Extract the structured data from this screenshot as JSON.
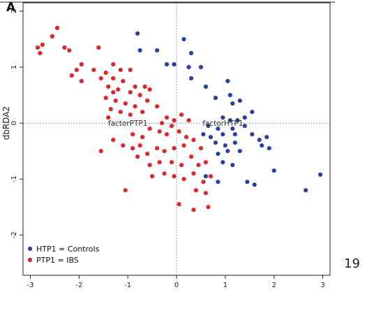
{
  "panel_label": "A",
  "page_number": "19",
  "chart_data": {
    "type": "scatter",
    "title": "",
    "xlabel": "",
    "ylabel": "dbRDA2",
    "xlim": [
      -3.15,
      3.15
    ],
    "ylim": [
      -2.72,
      2.15
    ],
    "xticks": [
      -3,
      -2,
      -1,
      0,
      1,
      2,
      3
    ],
    "yticks": [
      -2,
      -1,
      0,
      1,
      2
    ],
    "grid": false,
    "zero_lines": true,
    "legend_position": "bottom-left",
    "annotations": [
      {
        "text": "factorPTP1",
        "x": -1.0,
        "y": 0.0
      },
      {
        "text": "factorHTP1",
        "x": 0.95,
        "y": 0.0
      }
    ],
    "series": [
      {
        "name": "HTP1 = Controls",
        "color": "#2b3fa0",
        "points": [
          [
            -0.8,
            1.6
          ],
          [
            -0.75,
            1.3
          ],
          [
            -0.4,
            1.3
          ],
          [
            0.15,
            1.5
          ],
          [
            0.3,
            1.25
          ],
          [
            -0.2,
            1.05
          ],
          [
            -0.05,
            1.05
          ],
          [
            0.25,
            1.0
          ],
          [
            0.5,
            1.0
          ],
          [
            0.3,
            0.8
          ],
          [
            0.6,
            0.65
          ],
          [
            1.05,
            0.75
          ],
          [
            0.8,
            0.45
          ],
          [
            1.1,
            0.5
          ],
          [
            1.15,
            0.35
          ],
          [
            1.3,
            0.4
          ],
          [
            1.4,
            0.1
          ],
          [
            1.55,
            0.2
          ],
          [
            0.95,
            0.1
          ],
          [
            1.1,
            0.05
          ],
          [
            1.25,
            0.05
          ],
          [
            0.65,
            -0.05
          ],
          [
            0.85,
            -0.1
          ],
          [
            1.15,
            -0.1
          ],
          [
            1.4,
            -0.05
          ],
          [
            0.55,
            -0.2
          ],
          [
            0.7,
            -0.25
          ],
          [
            0.95,
            -0.2
          ],
          [
            1.2,
            -0.2
          ],
          [
            1.55,
            -0.2
          ],
          [
            1.85,
            -0.25
          ],
          [
            0.8,
            -0.35
          ],
          [
            1.0,
            -0.4
          ],
          [
            1.2,
            -0.35
          ],
          [
            0.85,
            -0.55
          ],
          [
            1.05,
            -0.5
          ],
          [
            1.3,
            -0.5
          ],
          [
            1.75,
            -0.4
          ],
          [
            1.9,
            -0.45
          ],
          [
            0.95,
            -0.7
          ],
          [
            1.15,
            -0.75
          ],
          [
            2.0,
            -0.85
          ],
          [
            0.85,
            -1.05
          ],
          [
            1.45,
            -1.05
          ],
          [
            1.6,
            -1.1
          ],
          [
            2.65,
            -1.2
          ],
          [
            2.95,
            -0.92
          ],
          [
            0.6,
            -0.95
          ],
          [
            1.7,
            -0.3
          ]
        ]
      },
      {
        "name": "PTP1 = IBS",
        "color": "#e0262b",
        "points": [
          [
            -2.45,
            1.7
          ],
          [
            -2.55,
            1.55
          ],
          [
            -2.75,
            1.4
          ],
          [
            -2.85,
            1.35
          ],
          [
            -2.8,
            1.25
          ],
          [
            -2.3,
            1.35
          ],
          [
            -2.2,
            1.3
          ],
          [
            -1.6,
            1.35
          ],
          [
            -1.95,
            1.05
          ],
          [
            -2.05,
            0.95
          ],
          [
            -1.7,
            0.95
          ],
          [
            -1.55,
            0.8
          ],
          [
            -2.15,
            0.85
          ],
          [
            -1.95,
            0.75
          ],
          [
            -1.3,
            1.05
          ],
          [
            -1.15,
            0.95
          ],
          [
            -0.95,
            0.95
          ],
          [
            -1.45,
            0.9
          ],
          [
            -1.3,
            0.8
          ],
          [
            -1.1,
            0.75
          ],
          [
            -0.85,
            0.65
          ],
          [
            -0.65,
            0.65
          ],
          [
            -1.4,
            0.65
          ],
          [
            -1.2,
            0.6
          ],
          [
            -0.95,
            0.55
          ],
          [
            -0.75,
            0.5
          ],
          [
            -0.55,
            0.6
          ],
          [
            -1.45,
            0.45
          ],
          [
            -1.25,
            0.4
          ],
          [
            -1.05,
            0.35
          ],
          [
            -0.85,
            0.3
          ],
          [
            -0.6,
            0.4
          ],
          [
            -1.35,
            0.25
          ],
          [
            -1.15,
            0.2
          ],
          [
            -0.95,
            0.15
          ],
          [
            -0.7,
            0.2
          ],
          [
            -1.4,
            0.1
          ],
          [
            -0.4,
            0.3
          ],
          [
            -0.2,
            0.1
          ],
          [
            -0.3,
            0.0
          ],
          [
            -0.05,
            0.05
          ],
          [
            0.1,
            0.15
          ],
          [
            0.25,
            0.05
          ],
          [
            -0.1,
            -0.05
          ],
          [
            0.05,
            -0.15
          ],
          [
            -0.55,
            -0.1
          ],
          [
            -0.35,
            -0.15
          ],
          [
            -0.2,
            -0.2
          ],
          [
            -0.9,
            -0.2
          ],
          [
            -0.7,
            -0.25
          ],
          [
            -1.3,
            -0.3
          ],
          [
            -1.1,
            -0.4
          ],
          [
            -0.9,
            -0.45
          ],
          [
            -0.75,
            -0.4
          ],
          [
            -0.6,
            -0.55
          ],
          [
            -0.4,
            -0.45
          ],
          [
            -0.25,
            -0.5
          ],
          [
            -0.05,
            -0.45
          ],
          [
            0.15,
            -0.4
          ],
          [
            0.35,
            -0.3
          ],
          [
            0.5,
            -0.45
          ],
          [
            -0.8,
            -0.6
          ],
          [
            -0.55,
            -0.75
          ],
          [
            -0.35,
            -0.7
          ],
          [
            -0.1,
            -0.7
          ],
          [
            0.1,
            -0.75
          ],
          [
            0.3,
            -0.6
          ],
          [
            0.45,
            -0.75
          ],
          [
            0.6,
            -0.7
          ],
          [
            -0.25,
            -0.9
          ],
          [
            -0.05,
            -0.95
          ],
          [
            0.15,
            -1.0
          ],
          [
            0.35,
            -0.9
          ],
          [
            0.55,
            -1.05
          ],
          [
            0.7,
            -0.95
          ],
          [
            -0.5,
            -0.95
          ],
          [
            0.05,
            -1.45
          ],
          [
            0.4,
            -1.2
          ],
          [
            0.6,
            -1.25
          ],
          [
            -1.05,
            -1.2
          ],
          [
            0.35,
            -1.55
          ],
          [
            0.65,
            -1.5
          ],
          [
            -1.55,
            -0.5
          ],
          [
            -1.3,
            0.55
          ],
          [
            0.2,
            -0.25
          ]
        ]
      }
    ]
  }
}
